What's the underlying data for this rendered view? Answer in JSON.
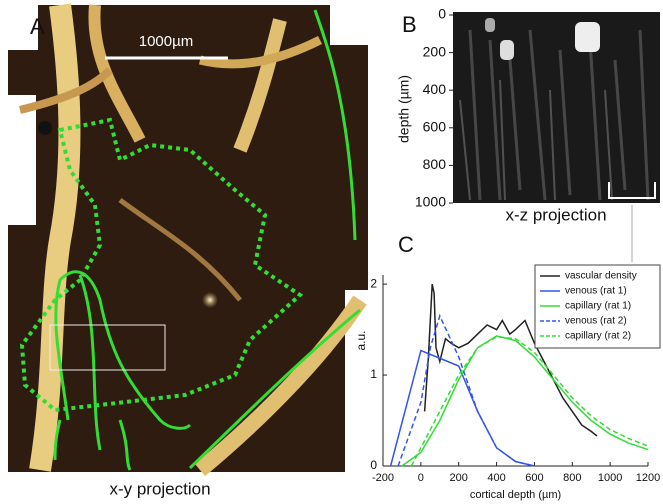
{
  "panel_a": {
    "letter": "A",
    "scale_label": "1000µm",
    "caption": "x-y projection"
  },
  "chart_data": [
    {
      "type": "image",
      "letter": "B",
      "ylabel": "depth (µm)",
      "caption": "x-z projection",
      "ylim": [
        0,
        1000
      ],
      "inverted": true,
      "yticks": [
        0,
        200,
        400,
        600,
        800,
        1000
      ]
    },
    {
      "type": "line",
      "letter": "C",
      "ylabel": "a.u.",
      "xlabel": "cortical depth (µm)",
      "xlim": [
        -200,
        1200
      ],
      "xticks": [
        -200,
        0,
        200,
        400,
        600,
        800,
        1000,
        1200
      ],
      "ylim": [
        0,
        2.1
      ],
      "yticks": [
        0,
        1,
        2
      ],
      "legend": "upper right",
      "series": [
        {
          "name": "vascular density",
          "color": "#222222",
          "dash": false,
          "x": [
            20,
            40,
            60,
            70,
            80,
            100,
            130,
            160,
            200,
            250,
            300,
            350,
            400,
            430,
            470,
            500,
            550,
            600,
            650,
            700,
            750,
            800,
            850,
            900,
            930
          ],
          "values": [
            0.6,
            1.2,
            2.0,
            1.9,
            1.3,
            1.15,
            1.4,
            1.35,
            1.3,
            1.35,
            1.45,
            1.55,
            1.5,
            1.6,
            1.45,
            1.5,
            1.6,
            1.35,
            1.15,
            0.95,
            0.75,
            0.6,
            0.45,
            0.38,
            0.33
          ]
        },
        {
          "name": "venous (rat 1)",
          "color": "#3355ee",
          "dash": false,
          "x": [
            -160,
            0,
            200,
            300,
            400,
            500,
            600
          ],
          "values": [
            0,
            1.27,
            1.1,
            0.6,
            0.2,
            0.05,
            0
          ]
        },
        {
          "name": "capillary (rat 1)",
          "color": "#33dd33",
          "dash": false,
          "x": [
            -100,
            0,
            100,
            200,
            300,
            400,
            500,
            600,
            700,
            800,
            900,
            1000,
            1100,
            1200
          ],
          "values": [
            0,
            0.15,
            0.5,
            0.95,
            1.3,
            1.43,
            1.38,
            1.2,
            0.95,
            0.7,
            0.5,
            0.35,
            0.25,
            0.18
          ]
        },
        {
          "name": "venous (rat 2)",
          "color": "#3355ee",
          "dash": true,
          "x": [
            -120,
            0,
            50,
            100,
            200,
            300,
            400,
            500,
            600
          ],
          "values": [
            0,
            0.7,
            1.3,
            1.65,
            1.2,
            0.6,
            0.2,
            0.05,
            0
          ]
        },
        {
          "name": "capillary (rat 2)",
          "color": "#33dd33",
          "dash": true,
          "x": [
            -50,
            0,
            100,
            200,
            300,
            400,
            500,
            600,
            700,
            800,
            900,
            1000,
            1100,
            1200
          ],
          "values": [
            0,
            0.2,
            0.6,
            1.0,
            1.3,
            1.42,
            1.4,
            1.25,
            1.0,
            0.75,
            0.55,
            0.4,
            0.3,
            0.22
          ]
        }
      ]
    }
  ]
}
